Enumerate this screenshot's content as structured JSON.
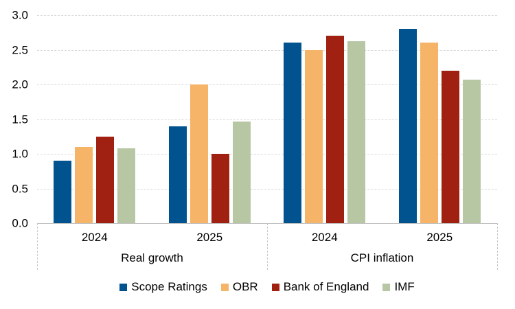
{
  "chart_data": {
    "type": "bar",
    "title": "",
    "xlabel": "",
    "ylabel": "",
    "ylim": [
      0,
      3.0
    ],
    "ytick_labels": [
      "3.0",
      "2.5",
      "2.0",
      "1.5",
      "1.0",
      "0.5",
      "0.0"
    ],
    "grid": "horizontal-dashed",
    "legend_position": "bottom",
    "category_groups": [
      {
        "label": "Real growth",
        "years": [
          "2024",
          "2025"
        ]
      },
      {
        "label": "CPI inflation",
        "years": [
          "2024",
          "2025"
        ]
      }
    ],
    "categories": [
      "Real growth 2024",
      "Real growth 2025",
      "CPI inflation 2024",
      "CPI inflation 2025"
    ],
    "series": [
      {
        "name": "Scope Ratings",
        "color": "#00538F",
        "values": [
          0.9,
          1.4,
          2.6,
          2.8
        ]
      },
      {
        "name": "OBR",
        "color": "#F6B468",
        "values": [
          1.1,
          2.0,
          2.5,
          2.6
        ]
      },
      {
        "name": "Bank of England",
        "color": "#A02012",
        "values": [
          1.25,
          1.0,
          2.7,
          2.2
        ]
      },
      {
        "name": "IMF",
        "color": "#B7C7A4",
        "values": [
          1.08,
          1.47,
          2.62,
          2.07
        ]
      }
    ]
  },
  "colors": {
    "gridline": "#D8D8D8",
    "axis_line": "#C2C2C2",
    "text": "#000000",
    "background": "#FFFFFF"
  }
}
